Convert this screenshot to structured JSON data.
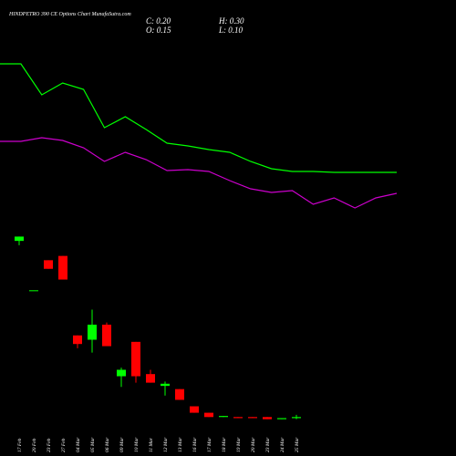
{
  "chart_data": {
    "type": "candlestick",
    "title": "HINDPETRO 390 CE Options Chart MunafaSutra.com",
    "header": [
      "C: 0.20",
      "H: 0.30",
      "O: 0.15",
      "L: 0.10"
    ],
    "categories": [
      "17 Feb",
      "20 Feb",
      "23 Feb",
      "27 Feb",
      "04 Mar",
      "05 Mar",
      "06 Mar",
      "09 Mar",
      "10 Mar",
      "11 Mar",
      "12 Mar",
      "13 Mar",
      "16 Mar",
      "17 Mar",
      "18 Mar",
      "19 Mar",
      "20 Mar",
      "23 Mar",
      "24 Mar",
      "25 Mar"
    ],
    "open": [
      8.4,
      6.1,
      7.5,
      7.7,
      4.0,
      3.8,
      4.5,
      2.1,
      3.7,
      2.2,
      1.65,
      1.5,
      0.7,
      0.4,
      0.2,
      0.2,
      0.2,
      0.2,
      0.1,
      0.15
    ],
    "high": [
      8.6,
      6.1,
      7.5,
      7.7,
      4.0,
      5.2,
      4.6,
      2.5,
      3.7,
      2.4,
      1.85,
      1.5,
      0.7,
      0.4,
      0.25,
      0.2,
      0.2,
      0.2,
      0.15,
      0.3
    ],
    "low": [
      8.2,
      6.1,
      7.1,
      6.6,
      3.4,
      3.2,
      3.5,
      1.6,
      1.8,
      1.8,
      1.2,
      1.0,
      0.4,
      0.2,
      0.2,
      0.15,
      0.15,
      0.1,
      0.1,
      0.1
    ],
    "close": [
      8.6,
      6.1,
      7.1,
      6.6,
      3.6,
      4.5,
      3.5,
      2.4,
      2.1,
      1.8,
      1.75,
      1.0,
      0.4,
      0.2,
      0.25,
      0.15,
      0.15,
      0.1,
      0.15,
      0.2
    ],
    "up_color": "#00ff00",
    "down_color": "#ff0000",
    "ylim": [
      0,
      9
    ],
    "y2lim": [
      0,
      10
    ],
    "series": [
      {
        "color": "#00ff00",
        "axis": "y2",
        "values": [
          9.0,
          9.0,
          7.3,
          7.95,
          7.6,
          5.5,
          6.1,
          5.4,
          4.65,
          4.5,
          4.3,
          4.15,
          3.65,
          3.25,
          3.1,
          3.1,
          3.05,
          3.05,
          3.05,
          3.05
        ]
      },
      {
        "color": "#cc00cc",
        "axis": "y2",
        "values": [
          4.75,
          4.75,
          4.95,
          4.8,
          4.4,
          3.65,
          4.15,
          3.75,
          3.15,
          3.2,
          3.1,
          2.6,
          2.15,
          1.95,
          2.05,
          1.3,
          1.65,
          1.1,
          1.65,
          1.9
        ]
      }
    ]
  }
}
